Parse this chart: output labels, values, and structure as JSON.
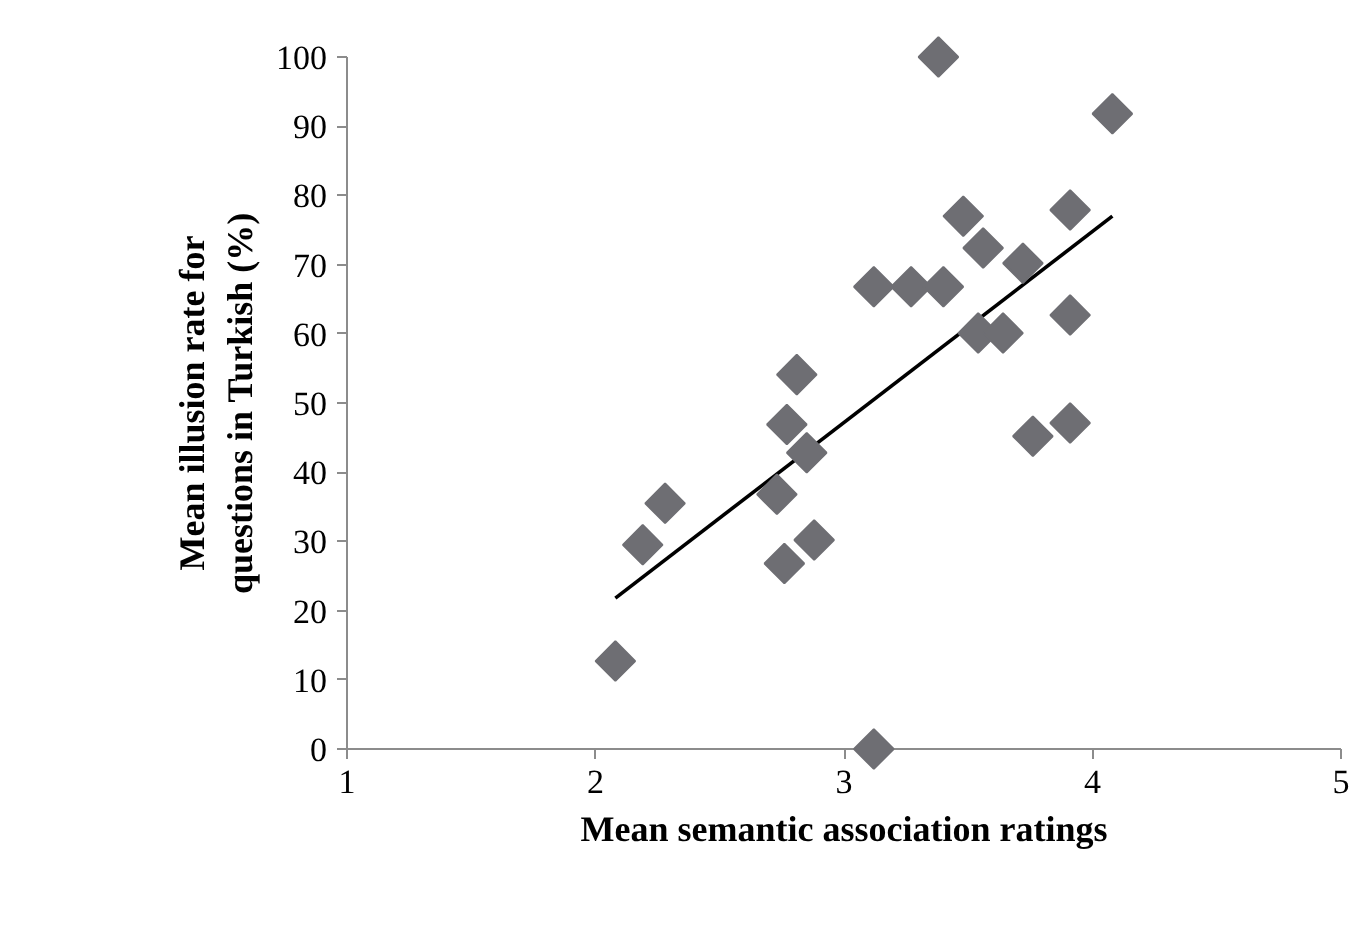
{
  "chart_data": {
    "type": "scatter",
    "xlabel": "Mean semantic association ratings",
    "ylabel": "Mean illusion rate for\nquestions in Turkish (%)",
    "xlim": [
      1,
      5
    ],
    "xticks": [
      1,
      2,
      3,
      4,
      5
    ],
    "ylim": [
      0,
      100
    ],
    "yticks": [
      0,
      10,
      20,
      30,
      40,
      50,
      60,
      70,
      80,
      90,
      100
    ],
    "grid": false,
    "series": [
      {
        "marker": "diamond",
        "color": "#6e6e73",
        "x": [
          2.08,
          2.19,
          2.28,
          2.81,
          2.77,
          2.85,
          2.73,
          2.88,
          2.76,
          3.12,
          3.27,
          3.4,
          3.38,
          4.08,
          3.48,
          3.56,
          3.72,
          3.91,
          3.54,
          3.64,
          3.91,
          3.76,
          3.91,
          3.12
        ],
        "values": [
          12.7,
          29.5,
          35.5,
          54.1,
          46.9,
          42.8,
          36.8,
          30.2,
          26.8,
          66.8,
          66.8,
          66.8,
          100,
          91.8,
          77,
          72.4,
          70.2,
          77.9,
          60.1,
          60.1,
          62.7,
          45.2,
          47.1,
          0
        ]
      },
      {
        "type": "line",
        "color": "#000000",
        "x": [
          2.08,
          4.08
        ],
        "values": [
          21.8,
          77.0
        ]
      }
    ]
  }
}
